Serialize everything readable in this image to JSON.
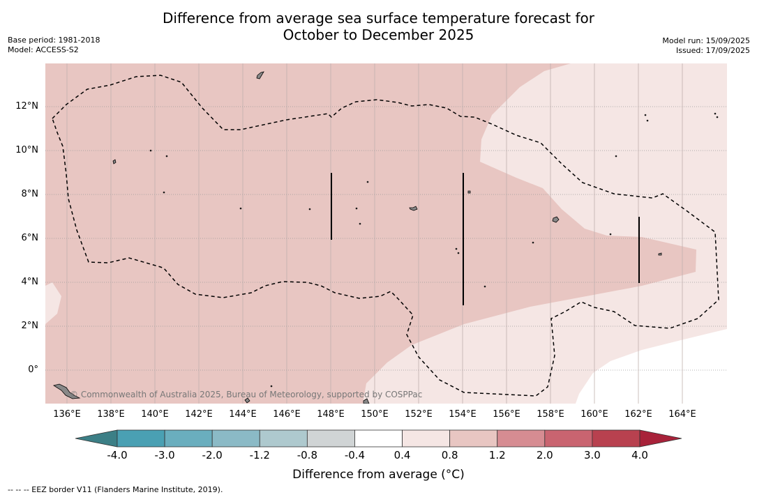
{
  "title_line1": "Difference from average sea surface temperature forecast for",
  "title_line2": "October to December 2025",
  "base_period": "Base period: 1981-2018",
  "model": "Model: ACCESS-S2",
  "model_run": "Model run: 15/09/2025",
  "issued": "Issued: 17/09/2025",
  "copyright": "© Commonwealth of Australia 2025, Bureau of Meteorology, supported by COSPPac",
  "latitudes": [
    "12°N",
    "10°N",
    "8°N",
    "6°N",
    "4°N",
    "2°N",
    "0°"
  ],
  "longitudes": [
    "136°E",
    "138°E",
    "140°E",
    "142°E",
    "144°E",
    "146°E",
    "148°E",
    "150°E",
    "152°E",
    "154°E",
    "156°E",
    "158°E",
    "160°E",
    "162°E",
    "164°E"
  ],
  "colorbar": {
    "title": "Difference from average (°C)",
    "ticks": [
      "-4.0",
      "-3.0",
      "-2.0",
      "-1.2",
      "-0.8",
      "-0.4",
      "0.4",
      "0.8",
      "1.2",
      "2.0",
      "3.0",
      "4.0"
    ],
    "colors": [
      "#3c7f86",
      "#4aa0b3",
      "#6aaebe",
      "#8bbac6",
      "#aec9ce",
      "#d0d4d5",
      "#ffffff",
      "#f5e6e4",
      "#e8c6c2",
      "#d68c92",
      "#c96470",
      "#b8414f",
      "#a8223a"
    ]
  },
  "footnote": "--  --  -- EEZ border V11 (Flanders Marine Institute, 2019)."
}
